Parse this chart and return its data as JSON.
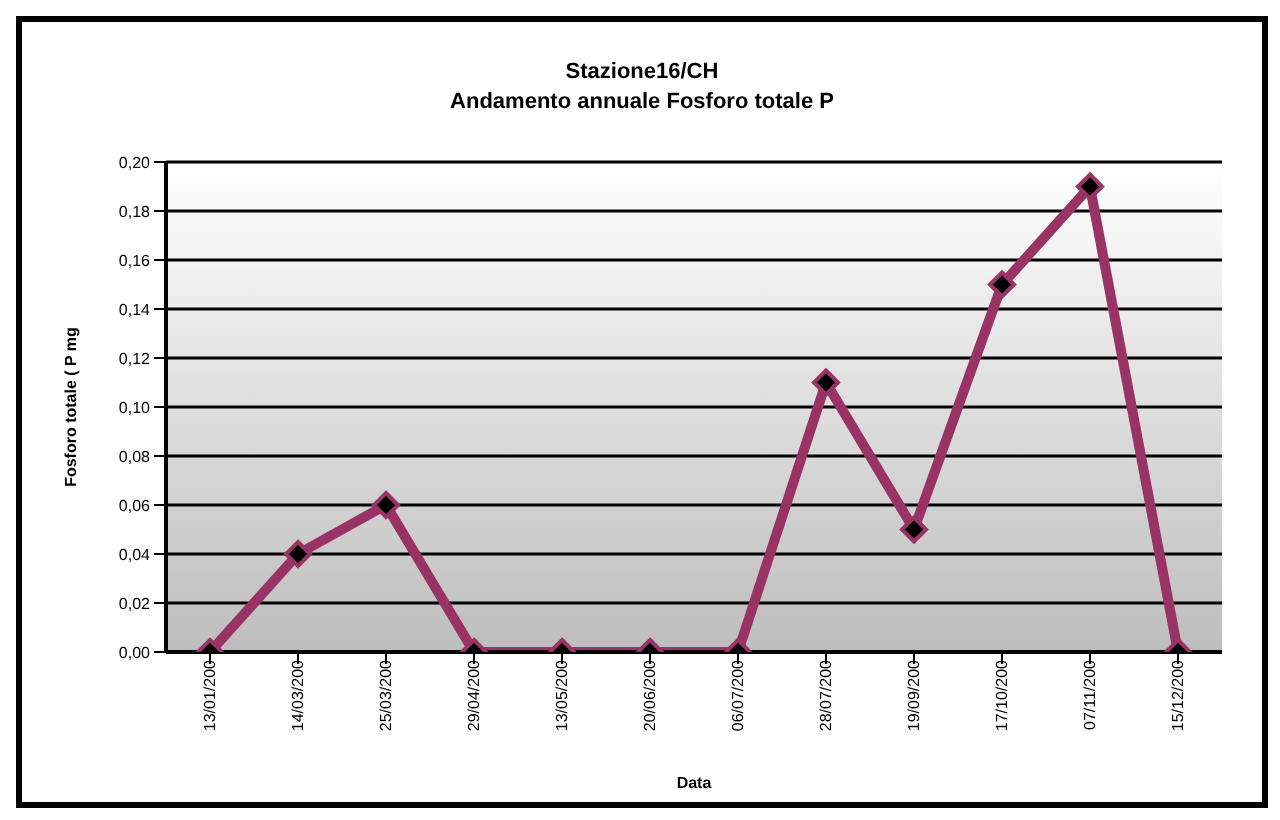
{
  "chart_data": {
    "type": "line",
    "title": "Stazione16/CH",
    "subtitle": "Andamento annuale Fosforo totale P",
    "xlabel": "Data",
    "ylabel": "Fosforo totale ( P mg",
    "categories": [
      "13/01/200",
      "14/03/200",
      "25/03/200",
      "29/04/200",
      "13/05/200",
      "20/06/200",
      "06/07/200",
      "28/07/200",
      "19/09/200",
      "17/10/200",
      "07/11/200",
      "15/12/200"
    ],
    "series": [
      {
        "color": "#993366",
        "values": [
          0,
          0.04,
          0.06,
          0,
          0,
          0,
          0,
          0.11,
          0.05,
          0.15,
          0.19,
          0
        ]
      }
    ],
    "ylim": [
      0,
      0.2
    ],
    "yticks": [
      {
        "value": 0,
        "label": "0,00"
      },
      {
        "value": 0.02,
        "label": "0,02"
      },
      {
        "value": 0.04,
        "label": "0,04"
      },
      {
        "value": 0.06,
        "label": "0,06"
      },
      {
        "value": 0.08,
        "label": "0,08"
      },
      {
        "value": 0.1,
        "label": "0,10"
      },
      {
        "value": 0.12,
        "label": "0,12"
      },
      {
        "value": 0.14,
        "label": "0,14"
      },
      {
        "value": 0.16,
        "label": "0,16"
      },
      {
        "value": 0.18,
        "label": "0,18"
      },
      {
        "value": 0.2,
        "label": "0,20"
      }
    ],
    "grid": "y",
    "marker": "diamond",
    "line_style": "solid"
  }
}
